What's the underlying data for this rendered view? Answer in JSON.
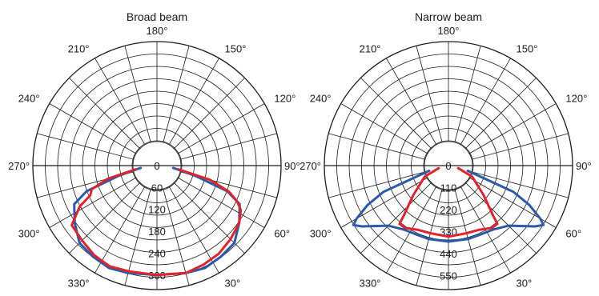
{
  "colors": {
    "series_a": "#2a5aa8",
    "series_b": "#e0242e",
    "grid": "#1a1a1a"
  },
  "chart_data": [
    {
      "type": "line",
      "subtype": "polar",
      "title": "Broad beam",
      "angle_direction": "0° at bottom, increasing counter-clockwise",
      "angle_labels": [
        "180°",
        "150°",
        "120°",
        "90°",
        "60°",
        "30°",
        "0°",
        "330°",
        "300°",
        "270°",
        "240°",
        "210°"
      ],
      "radial_ticks": [
        "0",
        "60",
        "120",
        "180",
        "240",
        "300"
      ],
      "rlim": [
        0,
        340
      ],
      "grid": true,
      "series": [
        {
          "color": "#2a5aa8",
          "theta": [
            -82,
            -75,
            -70,
            -65,
            -55,
            -45,
            -35,
            -25,
            -15,
            0,
            15,
            25,
            35,
            45,
            55,
            65,
            70,
            75,
            82
          ],
          "r": [
            45,
            110,
            205,
            250,
            275,
            300,
            305,
            310,
            305,
            300,
            305,
            310,
            305,
            300,
            275,
            250,
            205,
            110,
            45
          ]
        },
        {
          "color": "#e0242e",
          "theta": [
            -80,
            -75,
            -70,
            -66,
            -62,
            -55,
            -45,
            -35,
            -25,
            -15,
            0,
            15,
            25,
            35,
            45,
            55,
            62,
            66,
            70,
            75,
            80
          ],
          "r": [
            60,
            140,
            190,
            200,
            240,
            285,
            290,
            300,
            305,
            300,
            300,
            305,
            300,
            295,
            285,
            275,
            260,
            240,
            210,
            150,
            60
          ]
        }
      ]
    },
    {
      "type": "line",
      "subtype": "polar",
      "title": "Narrow beam",
      "angle_direction": "0° at bottom, increasing counter-clockwise",
      "angle_labels": [
        "180°",
        "150°",
        "120°",
        "90°",
        "60°",
        "30°",
        "0°",
        "330°",
        "300°",
        "270°",
        "240°",
        "210°"
      ],
      "radial_ticks": [
        "0",
        "110",
        "220",
        "330",
        "440",
        "550"
      ],
      "rlim": [
        0,
        620
      ],
      "grid": true,
      "series": [
        {
          "color": "#2a5aa8",
          "theta": [
            -75,
            -68,
            -64,
            -60,
            -58,
            -55,
            -45,
            -35,
            -25,
            -15,
            0,
            15,
            25,
            35,
            45,
            55,
            58,
            60,
            64,
            68,
            75
          ],
          "r": [
            100,
            350,
            450,
            530,
            560,
            530,
            425,
            390,
            380,
            380,
            380,
            380,
            380,
            390,
            425,
            530,
            560,
            530,
            450,
            350,
            100
          ]
        },
        {
          "color": "#e0242e",
          "theta": [
            -75,
            -65,
            -50,
            -42,
            -40,
            -35,
            -25,
            -15,
            0,
            15,
            25,
            35,
            40,
            42,
            50,
            65,
            75
          ],
          "r": [
            50,
            130,
            230,
            330,
            380,
            380,
            355,
            350,
            355,
            350,
            355,
            380,
            380,
            330,
            230,
            130,
            50
          ]
        }
      ]
    }
  ]
}
